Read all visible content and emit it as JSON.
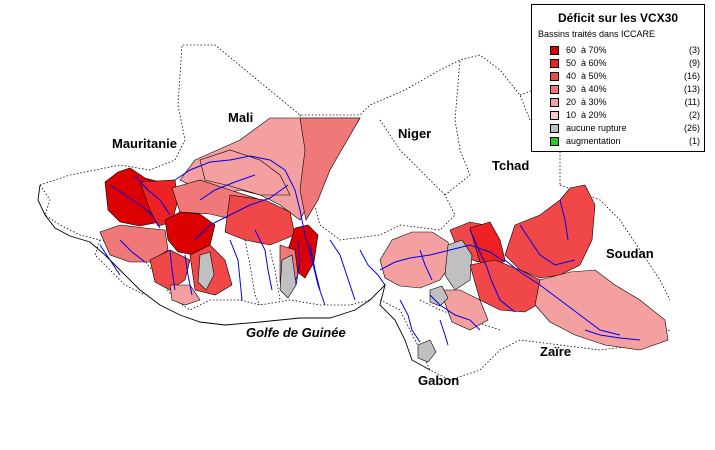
{
  "legend": {
    "title": "Déficit sur les VCX30",
    "subtitle": "Bassins traités dans ICCARE",
    "classes": [
      {
        "label": "60  à 70%",
        "count": "(3)",
        "color": "#dd0000"
      },
      {
        "label": "50  à 60%",
        "count": "(9)",
        "color": "#ee2222"
      },
      {
        "label": "40  à 50%",
        "count": "(16)",
        "color": "#f04848"
      },
      {
        "label": "30  à 40%",
        "count": "(13)",
        "color": "#f07878"
      },
      {
        "label": "20  à 30%",
        "count": "(11)",
        "color": "#f4a0a0"
      },
      {
        "label": "10  à 20%",
        "count": "(2)",
        "color": "#f8c8c8"
      },
      {
        "label": "aucune rupture",
        "count": "(26)",
        "color": "#c0c0c0"
      },
      {
        "label": "augmentation",
        "count": "(1)",
        "color": "#22cc22"
      }
    ]
  },
  "labels": {
    "mauritanie": "Mauritanie",
    "mali": "Mali",
    "niger": "Niger",
    "tchad": "Tchad",
    "soudan": "Soudan",
    "zaire": "Zaïre",
    "gabon": "Gabon",
    "golfe": "Golfe de Guinée"
  },
  "colors": {
    "river": "#0000ee",
    "border": "#000000"
  }
}
